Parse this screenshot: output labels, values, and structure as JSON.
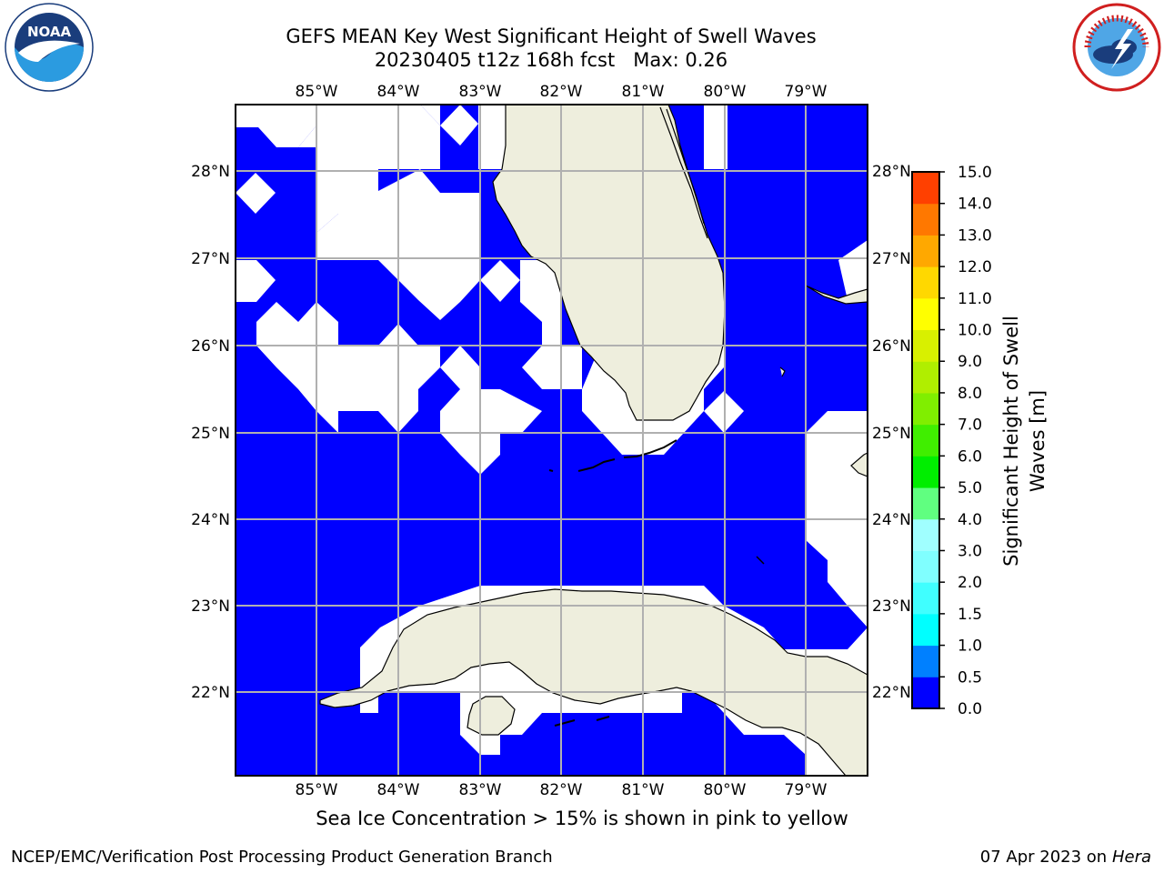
{
  "title": {
    "line1": "GEFS MEAN Key West Significant Height of Swell Waves",
    "line2": "20230405 t12z 168h fcst   Max: 0.26"
  },
  "logos": {
    "noaa_text": "NOAA",
    "noaa_ring_text": "NATIONAL OCEANIC AND ATMOSPHERIC ADMINISTRATION · U.S. DEPARTMENT OF COMMERCE",
    "nws_ring_text": "NATIONAL WEATHER SERVICE"
  },
  "map": {
    "lon_labels": [
      "85°W",
      "84°W",
      "83°W",
      "82°W",
      "81°W",
      "80°W",
      "79°W"
    ],
    "lat_labels": [
      "28°N",
      "27°N",
      "26°N",
      "25°N",
      "24°N",
      "23°N",
      "22°N"
    ],
    "colors": {
      "ocean_fill": "#0000ff",
      "land": "#eeeedd",
      "gridline": "#b0b0b0",
      "no_data": "#ffffff"
    }
  },
  "colorbar": {
    "label": "Significant Height of Swell Waves [m]",
    "ticks": [
      "0.0",
      "0.5",
      "1.0",
      "1.5",
      "2.0",
      "3.0",
      "4.0",
      "5.0",
      "6.0",
      "7.0",
      "8.0",
      "9.0",
      "10.0",
      "11.0",
      "12.0",
      "13.0",
      "14.0",
      "15.0"
    ],
    "colors": [
      "#0000ff",
      "#0080ff",
      "#00ffff",
      "#40ffff",
      "#80ffff",
      "#a0ffff",
      "#60ff80",
      "#00ee00",
      "#40ee00",
      "#80ee00",
      "#b0ee00",
      "#d8f000",
      "#ffff00",
      "#ffd800",
      "#ffa800",
      "#ff7800",
      "#ff4000",
      "#ff0000"
    ]
  },
  "note": "Sea Ice Concentration > 15% is shown in pink to yellow",
  "footer": {
    "left": "NCEP/EMC/Verification Post Processing Product Generation Branch",
    "right_date": "07 Apr 2023 on ",
    "right_host": "Hera"
  }
}
